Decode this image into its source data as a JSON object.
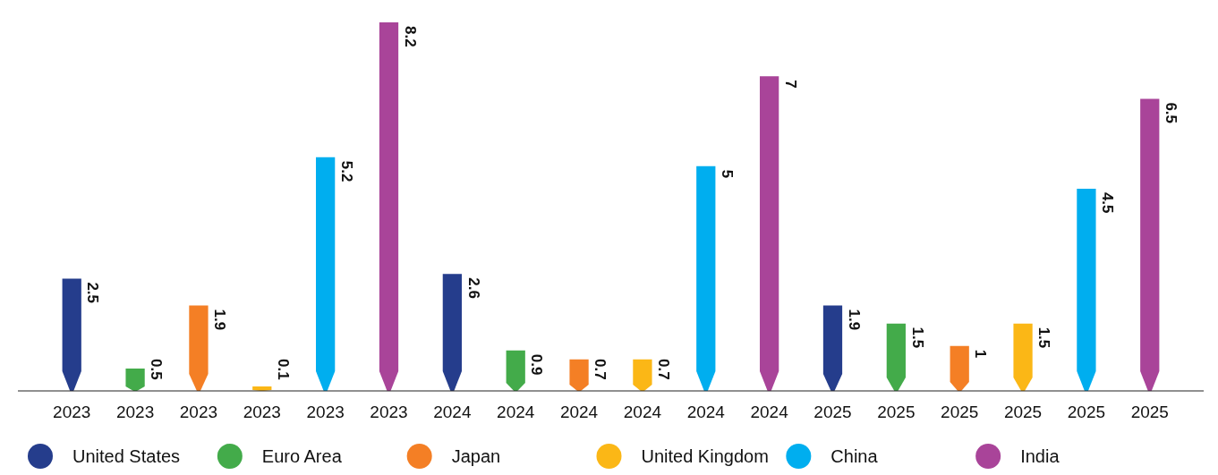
{
  "chart_data": {
    "type": "bar",
    "data_labels": true,
    "legend": "bottom",
    "categories": [
      "2023",
      "2023",
      "2023",
      "2023",
      "2023",
      "2023",
      "2024",
      "2024",
      "2024",
      "2024",
      "2024",
      "2024",
      "2025",
      "2025",
      "2025",
      "2025",
      "2025",
      "2025"
    ],
    "series": [
      {
        "name": "United States",
        "color": "#253d8c",
        "values": [
          2.5,
          null,
          null,
          null,
          null,
          null,
          2.6,
          null,
          null,
          null,
          null,
          null,
          1.9,
          null,
          null,
          null,
          null,
          null
        ]
      },
      {
        "name": "Euro Area",
        "color": "#43ab4a",
        "values": [
          null,
          0.5,
          null,
          null,
          null,
          null,
          null,
          0.9,
          null,
          null,
          null,
          null,
          null,
          1.5,
          null,
          null,
          null,
          null
        ]
      },
      {
        "name": "Japan",
        "color": "#f47f25",
        "values": [
          null,
          null,
          1.9,
          null,
          null,
          null,
          null,
          null,
          0.7,
          null,
          null,
          null,
          null,
          null,
          1,
          null,
          null,
          null
        ]
      },
      {
        "name": "United Kingdom",
        "color": "#fbb716",
        "values": [
          null,
          null,
          null,
          0.1,
          null,
          null,
          null,
          null,
          null,
          0.7,
          null,
          null,
          null,
          null,
          null,
          1.5,
          null,
          null
        ]
      },
      {
        "name": "China",
        "color": "#00aeef",
        "values": [
          null,
          null,
          null,
          null,
          5.2,
          null,
          null,
          null,
          null,
          null,
          5,
          null,
          null,
          null,
          null,
          null,
          4.5,
          null
        ]
      },
      {
        "name": "India",
        "color": "#a94499",
        "values": [
          null,
          null,
          null,
          null,
          null,
          8.2,
          null,
          null,
          null,
          null,
          null,
          7,
          null,
          null,
          null,
          null,
          null,
          6.5
        ]
      }
    ]
  }
}
